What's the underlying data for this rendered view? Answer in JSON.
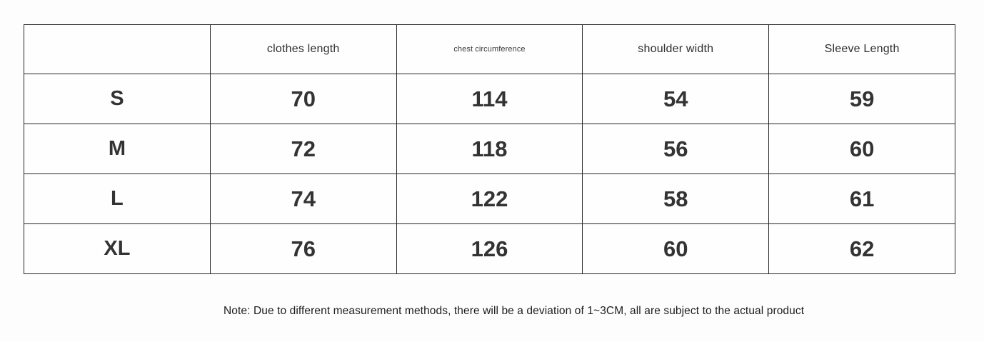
{
  "table": {
    "columns": [
      {
        "label": ""
      },
      {
        "label": "clothes length"
      },
      {
        "label": "chest circumference"
      },
      {
        "label": "shoulder width"
      },
      {
        "label": "Sleeve Length"
      }
    ],
    "rows": [
      {
        "size": "S",
        "clothes_length": "70",
        "chest_circumference": "114",
        "shoulder_width": "54",
        "sleeve_length": "59"
      },
      {
        "size": "M",
        "clothes_length": "72",
        "chest_circumference": "118",
        "shoulder_width": "56",
        "sleeve_length": "60"
      },
      {
        "size": "L",
        "clothes_length": "74",
        "chest_circumference": "122",
        "shoulder_width": "58",
        "sleeve_length": "61"
      },
      {
        "size": "XL",
        "clothes_length": "76",
        "chest_circumference": "126",
        "shoulder_width": "60",
        "sleeve_length": "62"
      }
    ]
  },
  "note": "Note: Due to different measurement methods, there will be a deviation of 1~3CM, all are subject to the actual product",
  "colors": {
    "text": "#333333",
    "border": "#262626",
    "background": "#fdfdfd"
  }
}
